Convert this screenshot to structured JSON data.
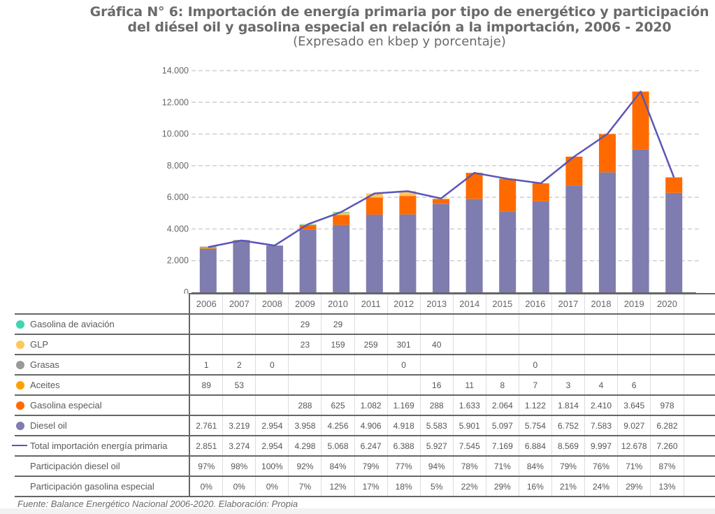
{
  "header": {
    "title_line1": "Gráfica N° 6: Importación de energía primaria por tipo de energético y participación",
    "title_line2": "del diésel oil y gasolina especial en relación a la importación, 2006 - 2020",
    "subtitle": "(Expresado en kbep y porcentaje)"
  },
  "footer": {
    "source": "Fuente: Balance Energético Nacional 2006-2020. Elaboración: Propia"
  },
  "chart_data": {
    "type": "bar",
    "stacked": true,
    "title": "Gráfica N° 6: Importación de energía primaria por tipo de energético y participación del diésel oil y gasolina especial en relación a la importación, 2006 - 2020",
    "subtitle": "(Expresado en kbep y porcentaje)",
    "xlabel": "",
    "ylabel": "",
    "ylim": [
      0,
      14000
    ],
    "yticks": [
      0,
      2000,
      4000,
      6000,
      8000,
      10000,
      12000,
      14000
    ],
    "ytick_labels": [
      "0",
      "2.000",
      "4.000",
      "6.000",
      "8.000",
      "10.000",
      "12.000",
      "14.000"
    ],
    "grid": true,
    "legend": "table-below",
    "categories": [
      "2006",
      "2007",
      "2008",
      "2009",
      "2010",
      "2011",
      "2012",
      "2013",
      "2014",
      "2015",
      "2016",
      "2017",
      "2018",
      "2019",
      "2020"
    ],
    "series": [
      {
        "name": "Gasolina de aviación",
        "kind": "bar",
        "color": "#3dd6b0",
        "values": [
          null,
          null,
          null,
          29,
          29,
          null,
          null,
          null,
          null,
          null,
          null,
          null,
          null,
          null,
          null
        ],
        "labels": [
          "",
          "",
          "",
          "29",
          "29",
          "",
          "",
          "",
          "",
          "",
          "",
          "",
          "",
          "",
          ""
        ]
      },
      {
        "name": "GLP",
        "kind": "bar",
        "color": "#ffc65c",
        "values": [
          null,
          null,
          null,
          23,
          159,
          259,
          301,
          40,
          null,
          null,
          null,
          null,
          null,
          null,
          null
        ],
        "labels": [
          "",
          "",
          "",
          "23",
          "159",
          "259",
          "301",
          "40",
          "",
          "",
          "",
          "",
          "",
          "",
          ""
        ]
      },
      {
        "name": "Grasas",
        "kind": "bar",
        "color": "#999999",
        "values": [
          1,
          2,
          0,
          null,
          null,
          null,
          0,
          null,
          null,
          null,
          0,
          null,
          null,
          null,
          null
        ],
        "labels": [
          "1",
          "2",
          "0",
          "",
          "",
          "",
          "0",
          "",
          "",
          "",
          "0",
          "",
          "",
          "",
          ""
        ]
      },
      {
        "name": "Aceites",
        "kind": "bar",
        "color": "#ffa000",
        "values": [
          89,
          53,
          null,
          null,
          null,
          null,
          null,
          16,
          11,
          8,
          7,
          3,
          4,
          6,
          null
        ],
        "labels": [
          "89",
          "53",
          "",
          "",
          "",
          "",
          "",
          "16",
          "11",
          "8",
          "7",
          "3",
          "4",
          "6",
          ""
        ]
      },
      {
        "name": "Gasolina especial",
        "kind": "bar",
        "color": "#ff6a00",
        "values": [
          null,
          null,
          null,
          288,
          625,
          1082,
          1169,
          288,
          1633,
          2064,
          1122,
          1814,
          2410,
          3645,
          978
        ],
        "labels": [
          "",
          "",
          "",
          "288",
          "625",
          "1.082",
          "1.169",
          "288",
          "1.633",
          "2.064",
          "1.122",
          "1.814",
          "2.410",
          "3.645",
          "978"
        ]
      },
      {
        "name": "Diesel oil",
        "kind": "bar",
        "color": "#7f7caf",
        "values": [
          2761,
          3219,
          2954,
          3958,
          4256,
          4906,
          4918,
          5583,
          5901,
          5097,
          5754,
          6752,
          7583,
          9027,
          6282
        ],
        "labels": [
          "2.761",
          "3.219",
          "2.954",
          "3.958",
          "4.256",
          "4.906",
          "4.918",
          "5.583",
          "5.901",
          "5.097",
          "5.754",
          "6.752",
          "7.583",
          "9.027",
          "6.282"
        ]
      },
      {
        "name": "Total importación energía primaria",
        "kind": "line",
        "color": "#5b55b8",
        "values": [
          2851,
          3274,
          2954,
          4298,
          5068,
          6247,
          6388,
          5927,
          7545,
          7169,
          6884,
          8569,
          9997,
          12678,
          7260
        ],
        "labels": [
          "2.851",
          "3.274",
          "2.954",
          "4.298",
          "5.068",
          "6.247",
          "6.388",
          "5.927",
          "7.545",
          "7.169",
          "6.884",
          "8.569",
          "9.997",
          "12.678",
          "7.260"
        ]
      },
      {
        "name": "Participación diesel oil",
        "kind": "table-only",
        "unit": "%",
        "values": [
          97,
          98,
          100,
          92,
          84,
          79,
          77,
          94,
          78,
          71,
          84,
          79,
          76,
          71,
          87
        ],
        "labels": [
          "97%",
          "98%",
          "100%",
          "92%",
          "84%",
          "79%",
          "77%",
          "94%",
          "78%",
          "71%",
          "84%",
          "79%",
          "76%",
          "71%",
          "87%"
        ]
      },
      {
        "name": "Participación gasolina especial",
        "kind": "table-only",
        "unit": "%",
        "values": [
          0,
          0,
          0,
          7,
          12,
          17,
          18,
          5,
          22,
          29,
          16,
          21,
          24,
          29,
          13
        ],
        "labels": [
          "0%",
          "0%",
          "0%",
          "7%",
          "12%",
          "17%",
          "18%",
          "5%",
          "22%",
          "29%",
          "16%",
          "21%",
          "24%",
          "29%",
          "13%"
        ]
      }
    ],
    "stack_order_bottom_to_top": [
      "Diesel oil",
      "Aceites",
      "Grasas",
      "Gasolina especial",
      "GLP",
      "Gasolina de aviación"
    ]
  }
}
